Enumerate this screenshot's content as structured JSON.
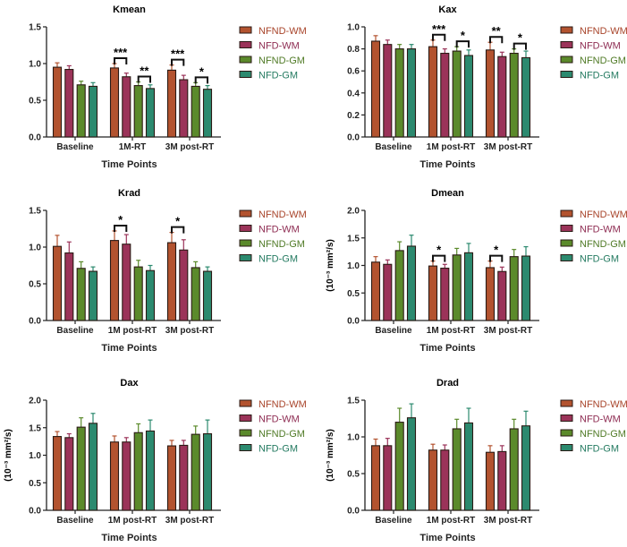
{
  "chart_data": {
    "type": "bar",
    "legend": {
      "placement": "right",
      "entries": [
        "NFND-WM",
        "NFD-WM",
        "NFND-GM",
        "NFD-GM"
      ],
      "colors": [
        "#b3532f",
        "#9b3359",
        "#5b8a2b",
        "#2c8a6f"
      ],
      "text_colors": [
        "#a8442a",
        "#8e2c52",
        "#4f7a25",
        "#237a60"
      ]
    },
    "panels": [
      {
        "title": "Kmean",
        "xlabel": "Time Points",
        "ylabel": "",
        "ylim": [
          0,
          1.5
        ],
        "yticks": [
          "0.0",
          "0.5",
          "1.0",
          "1.5"
        ],
        "ytick_values": [
          0,
          0.5,
          1.0,
          1.5
        ],
        "categories": [
          "Baseline",
          "1M-RT",
          "3M post-RT"
        ],
        "series": [
          {
            "name": "NFND-WM",
            "values": [
              0.95,
              0.94,
              0.91
            ],
            "errors": [
              0.06,
              0.06,
              0.07
            ]
          },
          {
            "name": "NFD-WM",
            "values": [
              0.92,
              0.82,
              0.78
            ],
            "errors": [
              0.05,
              0.05,
              0.06
            ]
          },
          {
            "name": "NFND-GM",
            "values": [
              0.71,
              0.7,
              0.69
            ],
            "errors": [
              0.05,
              0.05,
              0.05
            ]
          },
          {
            "name": "NFD-GM",
            "values": [
              0.69,
              0.66,
              0.65
            ],
            "errors": [
              0.05,
              0.05,
              0.05
            ]
          }
        ],
        "significance": [
          {
            "category": 1,
            "from": 0,
            "to": 1,
            "label": "***"
          },
          {
            "category": 1,
            "from": 2,
            "to": 3,
            "label": "**"
          },
          {
            "category": 2,
            "from": 0,
            "to": 1,
            "label": "***"
          },
          {
            "category": 2,
            "from": 2,
            "to": 3,
            "label": "*"
          }
        ]
      },
      {
        "title": "Kax",
        "xlabel": "Time Points",
        "ylabel": "",
        "ylim": [
          0,
          1.0
        ],
        "yticks": [
          "0.0",
          "0.2",
          "0.4",
          "0.6",
          "0.8",
          "1.0"
        ],
        "ytick_values": [
          0,
          0.2,
          0.4,
          0.6,
          0.8,
          1.0
        ],
        "categories": [
          "Baseline",
          "1M post-RT",
          "3M post-RT"
        ],
        "series": [
          {
            "name": "NFND-WM",
            "values": [
              0.87,
              0.82,
              0.79
            ],
            "errors": [
              0.05,
              0.06,
              0.07
            ]
          },
          {
            "name": "NFD-WM",
            "values": [
              0.84,
              0.76,
              0.73
            ],
            "errors": [
              0.04,
              0.04,
              0.04
            ]
          },
          {
            "name": "NFND-GM",
            "values": [
              0.8,
              0.78,
              0.76
            ],
            "errors": [
              0.04,
              0.04,
              0.04
            ]
          },
          {
            "name": "NFD-GM",
            "values": [
              0.8,
              0.74,
              0.72
            ],
            "errors": [
              0.04,
              0.05,
              0.06
            ]
          }
        ],
        "significance": [
          {
            "category": 1,
            "from": 0,
            "to": 1,
            "label": "***"
          },
          {
            "category": 1,
            "from": 2,
            "to": 3,
            "label": "*"
          },
          {
            "category": 2,
            "from": 0,
            "to": 1,
            "label": "**"
          },
          {
            "category": 2,
            "from": 2,
            "to": 3,
            "label": "*"
          }
        ]
      },
      {
        "title": "Krad",
        "xlabel": "Time Points",
        "ylabel": "",
        "ylim": [
          0,
          1.5
        ],
        "yticks": [
          "0.0",
          "0.5",
          "1.0",
          "1.5"
        ],
        "ytick_values": [
          0,
          0.5,
          1.0,
          1.5
        ],
        "categories": [
          "Baseline",
          "1M post-RT",
          "3M post-RT"
        ],
        "series": [
          {
            "name": "NFND-WM",
            "values": [
              1.01,
              1.09,
              1.06
            ],
            "errors": [
              0.15,
              0.13,
              0.14
            ]
          },
          {
            "name": "NFD-WM",
            "values": [
              0.92,
              1.04,
              0.96
            ],
            "errors": [
              0.15,
              0.13,
              0.14
            ]
          },
          {
            "name": "NFND-GM",
            "values": [
              0.71,
              0.73,
              0.72
            ],
            "errors": [
              0.09,
              0.09,
              0.08
            ]
          },
          {
            "name": "NFD-GM",
            "values": [
              0.67,
              0.68,
              0.67
            ],
            "errors": [
              0.06,
              0.07,
              0.06
            ]
          }
        ],
        "significance": [
          {
            "category": 1,
            "from": 0,
            "to": 1,
            "label": "*"
          },
          {
            "category": 2,
            "from": 0,
            "to": 1,
            "label": "*"
          }
        ]
      },
      {
        "title": "Dmean",
        "xlabel": "Time Points",
        "ylabel": "(10⁻³ mm²/s)",
        "ylim": [
          0,
          2.0
        ],
        "yticks": [
          "0.0",
          "0.5",
          "1.0",
          "1.5",
          "2.0"
        ],
        "ytick_values": [
          0,
          0.5,
          1.0,
          1.5,
          2.0
        ],
        "categories": [
          "Baseline",
          "1M post-RT",
          "3M post-RT"
        ],
        "series": [
          {
            "name": "NFND-WM",
            "values": [
              1.06,
              0.99,
              0.96
            ],
            "errors": [
              0.1,
              0.09,
              0.12
            ]
          },
          {
            "name": "NFD-WM",
            "values": [
              1.02,
              0.95,
              0.89
            ],
            "errors": [
              0.08,
              0.07,
              0.08
            ]
          },
          {
            "name": "NFND-GM",
            "values": [
              1.27,
              1.19,
              1.16
            ],
            "errors": [
              0.16,
              0.12,
              0.13
            ]
          },
          {
            "name": "NFD-GM",
            "values": [
              1.35,
              1.23,
              1.17
            ],
            "errors": [
              0.2,
              0.17,
              0.17
            ]
          }
        ],
        "significance": [
          {
            "category": 1,
            "from": 0,
            "to": 1,
            "label": "*"
          },
          {
            "category": 2,
            "from": 0,
            "to": 1,
            "label": "*"
          }
        ]
      },
      {
        "title": "Dax",
        "xlabel": "Time Points",
        "ylabel": "(10⁻³ mm²/s)",
        "ylim": [
          0,
          2.0
        ],
        "yticks": [
          "0.0",
          "0.5",
          "1.0",
          "1.5",
          "2.0"
        ],
        "ytick_values": [
          0,
          0.5,
          1.0,
          1.5,
          2.0
        ],
        "categories": [
          "Baseline",
          "1M post-RT",
          "3M post-RT"
        ],
        "series": [
          {
            "name": "NFND-WM",
            "values": [
              1.34,
              1.24,
              1.17
            ],
            "errors": [
              0.09,
              0.11,
              0.1
            ]
          },
          {
            "name": "NFD-WM",
            "values": [
              1.32,
              1.24,
              1.18
            ],
            "errors": [
              0.07,
              0.08,
              0.09
            ]
          },
          {
            "name": "NFND-GM",
            "values": [
              1.51,
              1.41,
              1.38
            ],
            "errors": [
              0.17,
              0.16,
              0.15
            ]
          },
          {
            "name": "NFD-GM",
            "values": [
              1.58,
              1.44,
              1.39
            ],
            "errors": [
              0.18,
              0.2,
              0.25
            ]
          }
        ],
        "significance": []
      },
      {
        "title": "Drad",
        "xlabel": "Time Points",
        "ylabel": "(10⁻³ mm²/s)",
        "ylim": [
          0,
          1.5
        ],
        "yticks": [
          "0.0",
          "0.5",
          "1.0",
          "1.5"
        ],
        "ytick_values": [
          0,
          0.5,
          1.0,
          1.5
        ],
        "categories": [
          "Baseline",
          "1M post-RT",
          "3M post-RT"
        ],
        "series": [
          {
            "name": "NFND-WM",
            "values": [
              0.88,
              0.82,
              0.79
            ],
            "errors": [
              0.09,
              0.08,
              0.09
            ]
          },
          {
            "name": "NFD-WM",
            "values": [
              0.88,
              0.82,
              0.8
            ],
            "errors": [
              0.1,
              0.07,
              0.08
            ]
          },
          {
            "name": "NFND-GM",
            "values": [
              1.2,
              1.11,
              1.11
            ],
            "errors": [
              0.19,
              0.13,
              0.13
            ]
          },
          {
            "name": "NFD-GM",
            "values": [
              1.26,
              1.19,
              1.15
            ],
            "errors": [
              0.19,
              0.2,
              0.2
            ]
          }
        ],
        "significance": []
      }
    ]
  }
}
